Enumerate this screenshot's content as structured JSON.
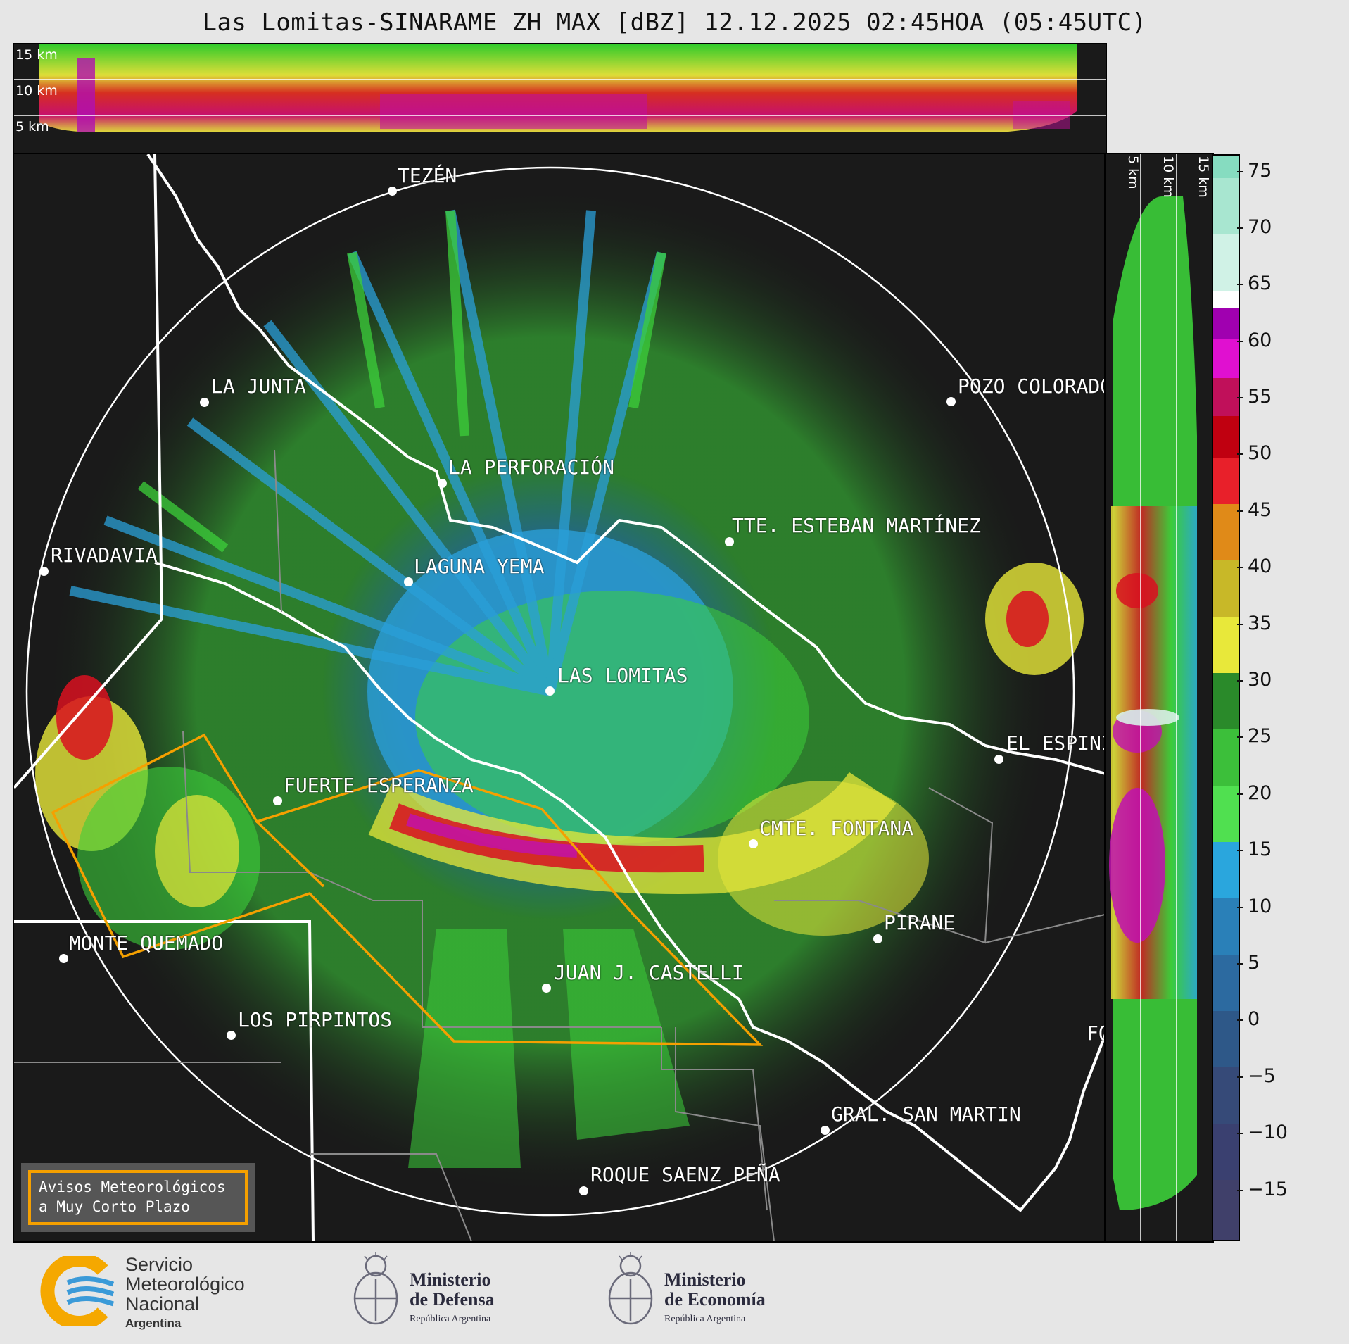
{
  "title": "Las Lomitas-SINARAME ZH MAX [dBZ] 12.12.2025 02:45HOA (05:45UTC)",
  "top_panel": {
    "km_labels": [
      "15 km",
      "10 km",
      "5 km"
    ]
  },
  "right_panel": {
    "km_labels": [
      "5 km",
      "10 km",
      "15 km"
    ]
  },
  "cities": [
    {
      "name": "TEZÉN"
    },
    {
      "name": "LA JUNTA"
    },
    {
      "name": "POZO COLORADO"
    },
    {
      "name": "LA PERFORACIÓN"
    },
    {
      "name": "TTE. ESTEBAN MARTÍNEZ"
    },
    {
      "name": "RIVADAVIA"
    },
    {
      "name": "LAGUNA YEMA"
    },
    {
      "name": "LAS LOMITAS"
    },
    {
      "name": "EL ESPINILLO"
    },
    {
      "name": "FUERTE ESPERANZA"
    },
    {
      "name": "CMTE. FONTANA"
    },
    {
      "name": "PIRANE"
    },
    {
      "name": "MONTE QUEMADO"
    },
    {
      "name": "JUAN J. CASTELLI"
    },
    {
      "name": "LOS PIRPINTOS"
    },
    {
      "name": "GRAL. SAN MARTIN"
    },
    {
      "name": "ROQUE SAENZ PEÑA"
    },
    {
      "name": "FO"
    }
  ],
  "warning_box": {
    "line1": "Avisos Meteorológicos",
    "line2": "a Muy Corto Plazo",
    "border_color": "#f5a000"
  },
  "colorbar": {
    "unit": "dBZ",
    "ticks": [
      "75",
      "70",
      "65",
      "60",
      "55",
      "50",
      "45",
      "40",
      "35",
      "30",
      "25",
      "20",
      "15",
      "10",
      "5",
      "0",
      "−5",
      "−10",
      "−15"
    ],
    "range": [
      -20,
      77
    ]
  },
  "logos": {
    "smn": {
      "line1": "Servicio",
      "line2": "Meteorológico",
      "line3": "Nacional",
      "line4": "Argentina",
      "icon": "smn-logo-icon"
    },
    "defensa": {
      "line1": "Ministerio",
      "line2": "de Defensa",
      "line3": "República Argentina",
      "icon": "coat-of-arms-icon"
    },
    "economia": {
      "line1": "Ministerio",
      "line2": "de Economía",
      "line3": "República Argentina",
      "icon": "coat-of-arms-icon"
    }
  },
  "colors": {
    "background": "#1a1a1a",
    "page": "#e6e6e6",
    "warning_polygon": "#f5a000",
    "border_white": "#ffffff"
  }
}
